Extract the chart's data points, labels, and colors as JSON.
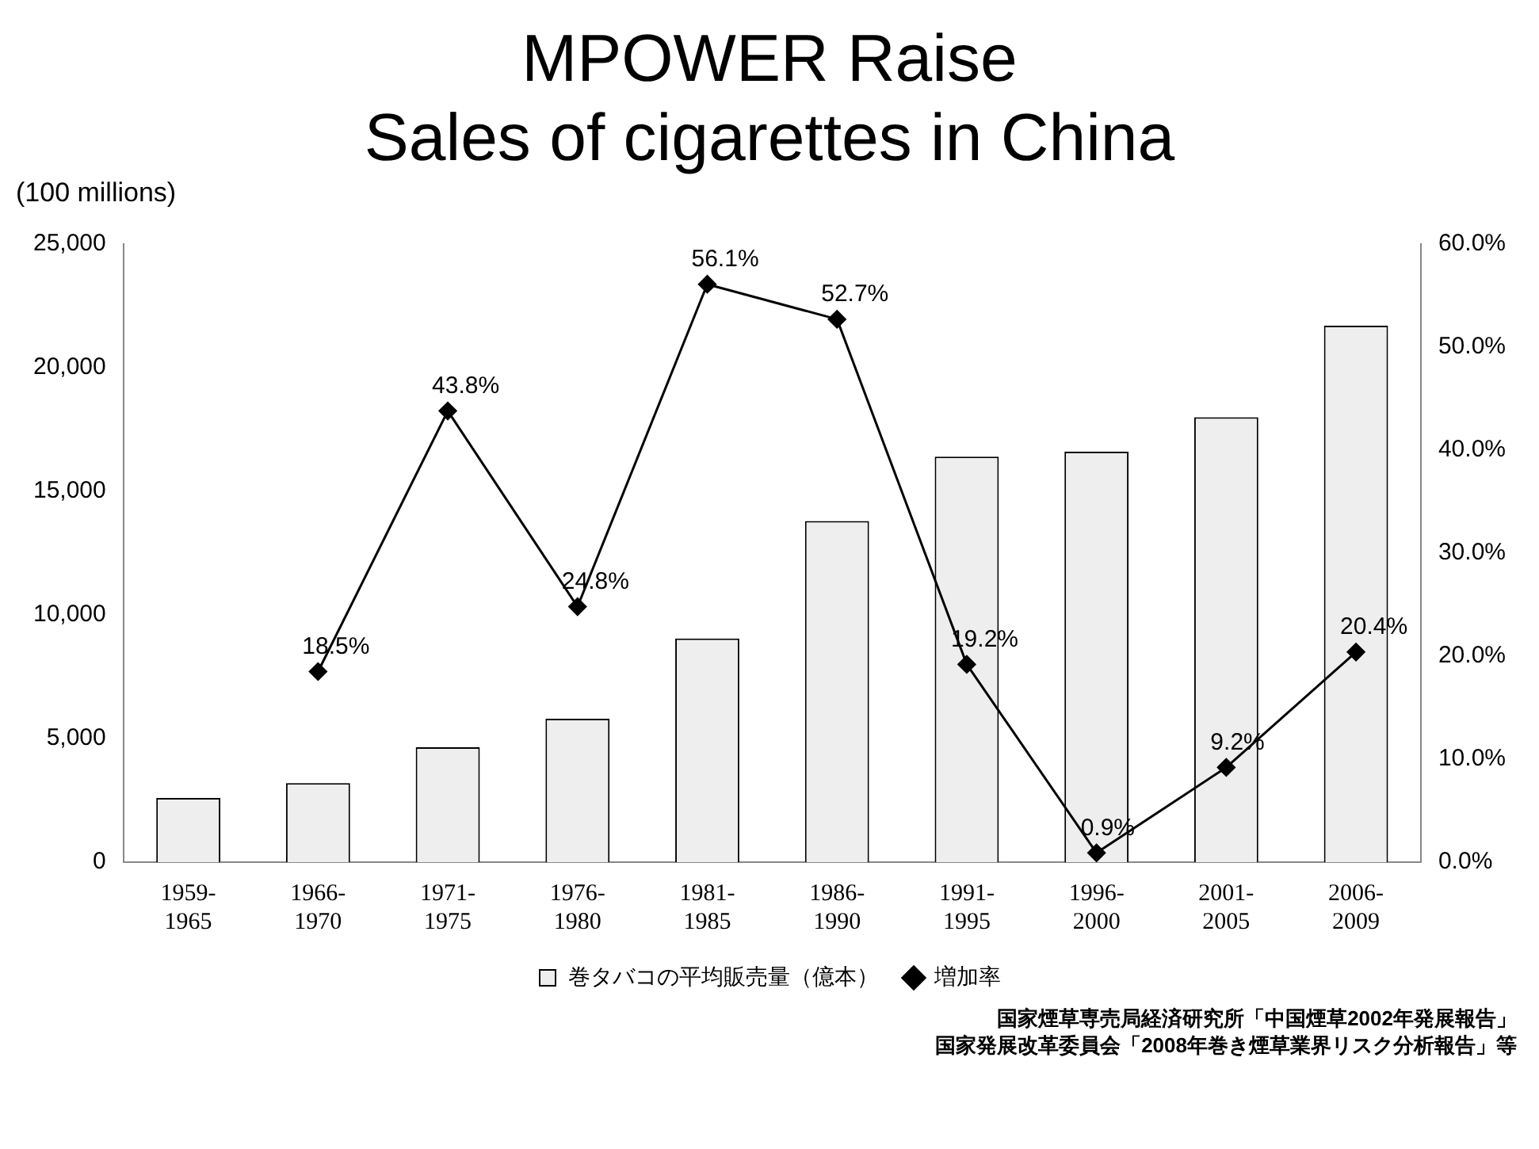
{
  "chart_data": {
    "type": "bar",
    "title": "MPOWER  Raise\nSales of cigarettes in China",
    "ylabel": "(100 millions)",
    "categories": [
      "1959-\n1965",
      "1966-\n1970",
      "1971-\n1975",
      "1976-\n1980",
      "1981-\n1985",
      "1986-\n1990",
      "1991-\n1995",
      "1996-\n2000",
      "2001-\n2005",
      "2006-\n2009"
    ],
    "series": [
      {
        "name": "巻タバコの平均販売量（億本）",
        "color": "#eeeeee",
        "values": [
          2600,
          3200,
          4650,
          5800,
          9050,
          13800,
          16400,
          16600,
          18000,
          21700
        ]
      },
      {
        "name": "増加率",
        "type": "line",
        "axis": "y2",
        "color": "#000000",
        "marker": "diamond",
        "values": [
          null,
          18.5,
          43.8,
          24.8,
          56.1,
          52.7,
          19.2,
          0.9,
          9.2,
          20.4
        ],
        "value_labels": [
          null,
          "18.5%",
          "43.8%",
          "24.8%",
          "56.1%",
          "52.7%",
          "19.2%",
          "0.9%",
          "9.2%",
          "20.4%"
        ]
      }
    ],
    "ylim": [
      0,
      25000
    ],
    "yticks": [
      0,
      {
        "value": 5000,
        "label": "5,000"
      },
      {
        "value": 10000,
        "label": "10,000"
      },
      {
        "value": 15000,
        "label": "15,000"
      },
      {
        "value": 20000,
        "label": "20,000"
      },
      {
        "value": 25000,
        "label": "25,000"
      }
    ],
    "y2lim": [
      0,
      60
    ],
    "y2ticks": [
      {
        "value": 0,
        "label": "0.0%"
      },
      {
        "value": 10,
        "label": "10.0%"
      },
      {
        "value": 20,
        "label": "20.0%"
      },
      {
        "value": 30,
        "label": "30.0%"
      },
      {
        "value": 40,
        "label": "40.0%"
      },
      {
        "value": 50,
        "label": "50.0%"
      },
      {
        "value": 60,
        "label": "60.0%"
      }
    ],
    "grid": false,
    "legend": "bottom",
    "annotations": [
      "国家煙草専売局経済研究所「中国煙草2002年発展報告」",
      "国家発展改革委員会「2008年巻き煙草業界リスク分析報告」等"
    ]
  }
}
